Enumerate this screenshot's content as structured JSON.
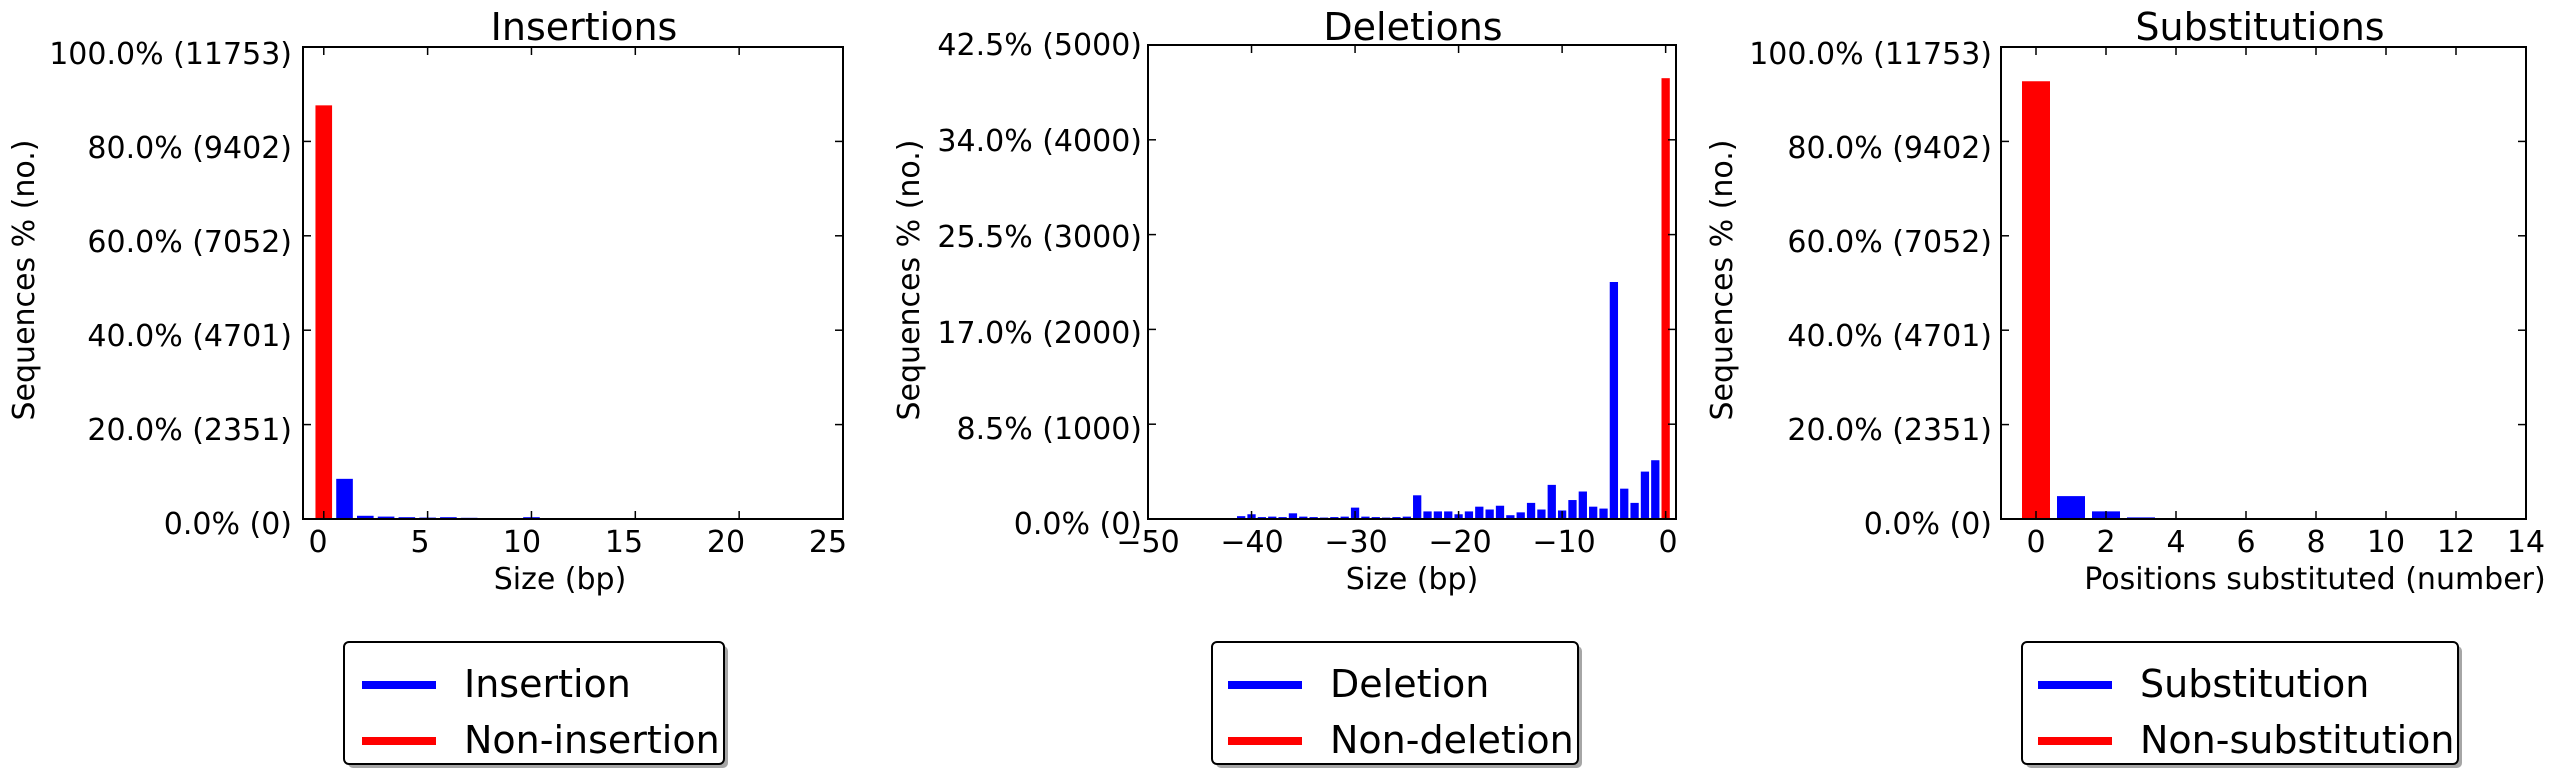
{
  "chart_data": [
    {
      "type": "bar",
      "title": "Insertions",
      "xlabel": "Size (bp)",
      "ylabel": "Sequences % (no.)",
      "xlim": [
        -1,
        25
      ],
      "ylim": [
        0,
        11753
      ],
      "x_ticks": [
        0,
        5,
        10,
        15,
        20,
        25
      ],
      "x_tick_labels": [
        "0",
        "5",
        "10",
        "15",
        "20",
        "25"
      ],
      "y_ticks": [
        0,
        2351,
        4701,
        7052,
        9402,
        11753
      ],
      "y_tick_labels": [
        "0.0% (0)",
        "20.0% (2351)",
        "40.0% (4701)",
        "60.0% (7052)",
        "80.0% (9402)",
        "100.0% (11753)"
      ],
      "bar_width": 0.8,
      "series": [
        {
          "name": "Insertion",
          "color": "#0000ff",
          "points": [
            {
              "x": 1,
              "y": 1000
            },
            {
              "x": 2,
              "y": 80
            },
            {
              "x": 3,
              "y": 60
            },
            {
              "x": 4,
              "y": 45
            },
            {
              "x": 5,
              "y": 35
            },
            {
              "x": 6,
              "y": 45
            },
            {
              "x": 7,
              "y": 30
            },
            {
              "x": 8,
              "y": 25
            },
            {
              "x": 9,
              "y": 20
            },
            {
              "x": 10,
              "y": 45
            },
            {
              "x": 18,
              "y": 20
            }
          ]
        },
        {
          "name": "Non-insertion",
          "color": "#ff0000",
          "points": [
            {
              "x": 0,
              "y": 10300
            }
          ]
        }
      ],
      "legend": {
        "position": "bottom",
        "entries": [
          "Insertion",
          "Non-insertion"
        ]
      }
    },
    {
      "type": "bar",
      "title": "Deletions",
      "xlabel": "Size (bp)",
      "ylabel": "Sequences % (no.)",
      "xlim": [
        -50,
        1
      ],
      "ylim": [
        0,
        5000
      ],
      "x_ticks": [
        -50,
        -40,
        -30,
        -20,
        -10,
        0
      ],
      "x_tick_labels": [
        "−50",
        "−40",
        "−30",
        "−20",
        "−10",
        "0"
      ],
      "y_ticks": [
        0,
        1000,
        2000,
        3000,
        4000,
        5000
      ],
      "y_tick_labels": [
        "0.0% (0)",
        "8.5% (1000)",
        "17.0% (2000)",
        "25.5% (3000)",
        "34.0% (4000)",
        "42.5% (5000)"
      ],
      "bar_width": 0.8,
      "series": [
        {
          "name": "Deletion",
          "color": "#0000ff",
          "points": [
            {
              "x": -41,
              "y": 30
            },
            {
              "x": -40,
              "y": 50
            },
            {
              "x": -39,
              "y": 20
            },
            {
              "x": -38,
              "y": 25
            },
            {
              "x": -37,
              "y": 20
            },
            {
              "x": -36,
              "y": 60
            },
            {
              "x": -35,
              "y": 25
            },
            {
              "x": -34,
              "y": 20
            },
            {
              "x": -33,
              "y": 15
            },
            {
              "x": -32,
              "y": 20
            },
            {
              "x": -31,
              "y": 25
            },
            {
              "x": -30,
              "y": 120
            },
            {
              "x": -29,
              "y": 25
            },
            {
              "x": -28,
              "y": 20
            },
            {
              "x": -27,
              "y": 15
            },
            {
              "x": -26,
              "y": 20
            },
            {
              "x": -25,
              "y": 25
            },
            {
              "x": -24,
              "y": 250
            },
            {
              "x": -23,
              "y": 80
            },
            {
              "x": -22,
              "y": 80
            },
            {
              "x": -21,
              "y": 80
            },
            {
              "x": -20,
              "y": 50
            },
            {
              "x": -19,
              "y": 80
            },
            {
              "x": -18,
              "y": 130
            },
            {
              "x": -17,
              "y": 100
            },
            {
              "x": -16,
              "y": 140
            },
            {
              "x": -15,
              "y": 40
            },
            {
              "x": -14,
              "y": 70
            },
            {
              "x": -13,
              "y": 170
            },
            {
              "x": -12,
              "y": 100
            },
            {
              "x": -11,
              "y": 360
            },
            {
              "x": -10,
              "y": 90
            },
            {
              "x": -9,
              "y": 200
            },
            {
              "x": -8,
              "y": 290
            },
            {
              "x": -7,
              "y": 130
            },
            {
              "x": -6,
              "y": 110
            },
            {
              "x": -5,
              "y": 2500
            },
            {
              "x": -4,
              "y": 320
            },
            {
              "x": -3,
              "y": 170
            },
            {
              "x": -2,
              "y": 500
            },
            {
              "x": -1,
              "y": 620
            }
          ]
        },
        {
          "name": "Non-deletion",
          "color": "#ff0000",
          "points": [
            {
              "x": 0,
              "y": 4650
            }
          ]
        }
      ],
      "legend": {
        "position": "bottom",
        "entries": [
          "Deletion",
          "Non-deletion"
        ]
      }
    },
    {
      "type": "bar",
      "title": "Substitutions",
      "xlabel": "Positions substituted (number)",
      "ylabel": "Sequences % (no.)",
      "xlim": [
        -1,
        14
      ],
      "ylim": [
        0,
        11753
      ],
      "x_ticks": [
        0,
        2,
        4,
        6,
        8,
        10,
        12,
        14
      ],
      "x_tick_labels": [
        "0",
        "2",
        "4",
        "6",
        "8",
        "10",
        "12",
        "14"
      ],
      "y_ticks": [
        0,
        2351,
        4701,
        7052,
        9402,
        11753
      ],
      "y_tick_labels": [
        "0.0% (0)",
        "20.0% (2351)",
        "40.0% (4701)",
        "60.0% (7052)",
        "80.0% (9402)",
        "100.0% (11753)"
      ],
      "bar_width": 0.8,
      "series": [
        {
          "name": "Substitution",
          "color": "#0000ff",
          "points": [
            {
              "x": 1,
              "y": 570
            },
            {
              "x": 2,
              "y": 190
            },
            {
              "x": 3,
              "y": 40
            }
          ]
        },
        {
          "name": "Non-substitution",
          "color": "#ff0000",
          "points": [
            {
              "x": 0,
              "y": 10900
            }
          ]
        }
      ],
      "legend": {
        "position": "bottom",
        "entries": [
          "Substitution",
          "Non-substitution"
        ]
      }
    }
  ]
}
